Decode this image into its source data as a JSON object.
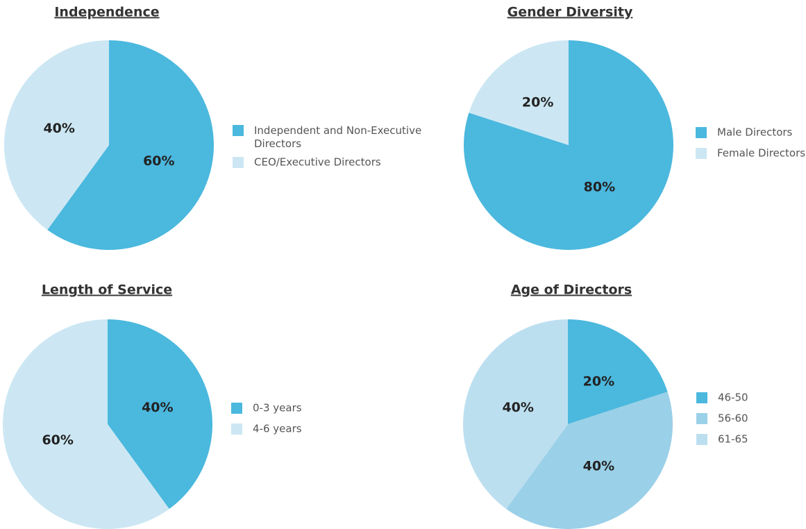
{
  "chart_data": [
    {
      "type": "pie",
      "title": "Independence",
      "categories": [
        "Independent and Non-Executive Directors",
        "CEO/Executive Directors"
      ],
      "values": [
        60,
        40
      ],
      "value_labels": [
        "60%",
        "40%"
      ],
      "colors": [
        "#4bb8de",
        "#cce7f3"
      ]
    },
    {
      "type": "pie",
      "title": "Gender Diversity",
      "categories": [
        "Male Directors",
        "Female Directors"
      ],
      "values": [
        80,
        20
      ],
      "value_labels": [
        "80%",
        "20%"
      ],
      "colors": [
        "#4bb8de",
        "#cce7f3"
      ]
    },
    {
      "type": "pie",
      "title": "Length of Service",
      "categories": [
        "0-3 years",
        "4-6 years"
      ],
      "values": [
        40,
        60
      ],
      "value_labels": [
        "40%",
        "60%"
      ],
      "colors": [
        "#4bb8de",
        "#cce7f3"
      ]
    },
    {
      "type": "pie",
      "title": "Age of Directors",
      "categories": [
        "46-50",
        "56-60",
        "61-65"
      ],
      "values": [
        20,
        40,
        40
      ],
      "value_labels": [
        "20%",
        "40%",
        "40%"
      ],
      "colors": [
        "#4bb8de",
        "#9ad0e8",
        "#bcdff0"
      ]
    }
  ]
}
